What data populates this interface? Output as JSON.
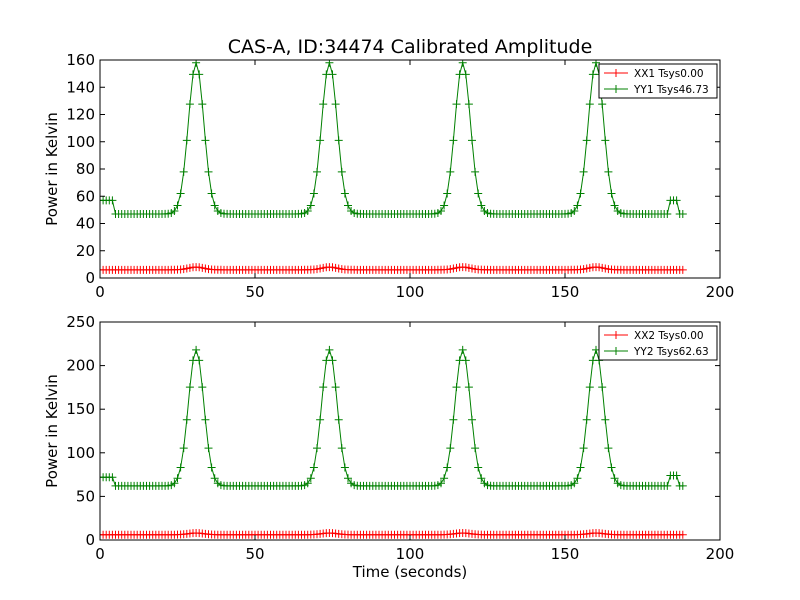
{
  "chart_data": [
    {
      "type": "line",
      "title": "CAS-A, ID:34474 Calibrated Amplitude",
      "xlabel": "",
      "ylabel": "Power in Kelvin",
      "xlim": [
        0,
        200
      ],
      "ylim": [
        0,
        160
      ],
      "xticks": [
        0,
        50,
        100,
        150,
        200
      ],
      "yticks": [
        0,
        20,
        40,
        60,
        80,
        100,
        120,
        140,
        160
      ],
      "legend_position": "top-right",
      "grid": false,
      "sample_interval_s": 1,
      "series": [
        {
          "name": "XX1 Tsys0.00",
          "color": "#ff0000",
          "marker": "+",
          "baseline": 6,
          "peak_value": 8,
          "peak_centers": [
            31,
            74,
            117,
            160
          ],
          "peak_sigma": 2.5,
          "x_end": 188
        },
        {
          "name": "YY1 Tsys46.73",
          "color": "#008000",
          "marker": "+",
          "baseline": 47,
          "peak_value": 158,
          "peak_centers": [
            31,
            74,
            117,
            160
          ],
          "peak_sigma": 2.5,
          "steps": [
            {
              "from": 0,
              "to": 4,
              "value": 57
            },
            {
              "from": 184,
              "to": 186,
              "value": 57
            }
          ],
          "x_end": 188
        }
      ]
    },
    {
      "type": "line",
      "title": "",
      "xlabel": "Time (seconds)",
      "ylabel": "Power in Kelvin",
      "xlim": [
        0,
        200
      ],
      "ylim": [
        0,
        250
      ],
      "xticks": [
        0,
        50,
        100,
        150,
        200
      ],
      "yticks": [
        0,
        50,
        100,
        150,
        200,
        250
      ],
      "legend_position": "top-right",
      "grid": false,
      "sample_interval_s": 1,
      "series": [
        {
          "name": "XX2 Tsys0.00",
          "color": "#ff0000",
          "marker": "+",
          "baseline": 6,
          "peak_value": 8,
          "peak_centers": [
            31,
            74,
            117,
            160
          ],
          "peak_sigma": 2.5,
          "x_end": 188
        },
        {
          "name": "YY2 Tsys62.63",
          "color": "#008000",
          "marker": "+",
          "baseline": 62,
          "peak_value": 218,
          "peak_centers": [
            31,
            74,
            117,
            160
          ],
          "peak_sigma": 2.5,
          "steps": [
            {
              "from": 0,
              "to": 4,
              "value": 72
            },
            {
              "from": 184,
              "to": 186,
              "value": 74
            }
          ],
          "x_end": 188
        }
      ]
    }
  ]
}
